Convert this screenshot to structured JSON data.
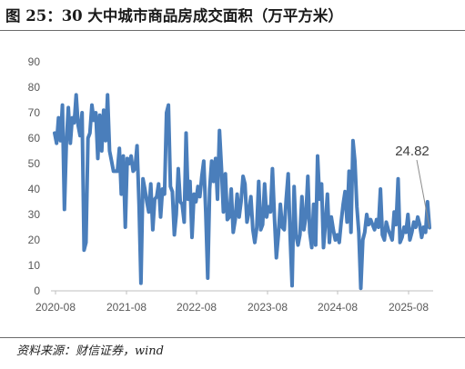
{
  "title": "图 25：30 大中城市商品房成交面积（万平方米）",
  "source": "资料来源：财信证券，wind",
  "chart_data": {
    "type": "line",
    "title": "30 大中城市商品房成交面积（万平方米）",
    "xlabel": "",
    "ylabel": "",
    "ylim": [
      0,
      90
    ],
    "yticks": [
      0,
      10,
      20,
      30,
      40,
      50,
      60,
      70,
      80,
      90
    ],
    "xtick_labels": [
      "2020-08",
      "2021-08",
      "2022-08",
      "2023-08",
      "2024-08",
      "2025-08"
    ],
    "x_start": "2020-08",
    "x_end": "2025-09",
    "grid": false,
    "legend": "none",
    "line_color": "#4a7ebb",
    "callout": {
      "text": "24.82",
      "value": 24.82
    },
    "x_note": "weekly observations, evenly spaced from 2020-08 to 2025-09",
    "series": [
      {
        "values": [
          62,
          58,
          68,
          59,
          73,
          32,
          58,
          72,
          58,
          68,
          66,
          77,
          65,
          61,
          70,
          16,
          19,
          60,
          62,
          73,
          67,
          70,
          52,
          69,
          55,
          71,
          59,
          77,
          55,
          51,
          47,
          47,
          47,
          56,
          38,
          53,
          25,
          52,
          50,
          53,
          47,
          48,
          57,
          34,
          3,
          44,
          40,
          35,
          31,
          42,
          24,
          36,
          37,
          42,
          29,
          40,
          38,
          70,
          73,
          41,
          39,
          22,
          30,
          48,
          35,
          34,
          27,
          62,
          36,
          43,
          21,
          38,
          35,
          41,
          37,
          45,
          51,
          31,
          5,
          40,
          51,
          43,
          52,
          36,
          63,
          48,
          31,
          46,
          28,
          29,
          40,
          23,
          28,
          38,
          29,
          35,
          45,
          42,
          27,
          31,
          37,
          24,
          19,
          25,
          43,
          24,
          26,
          42,
          29,
          33,
          31,
          48,
          29,
          13,
          22,
          34,
          25,
          24,
          36,
          46,
          22,
          2,
          41,
          22,
          18,
          22,
          37,
          24,
          29,
          45,
          23,
          17,
          34,
          18,
          53,
          36,
          42,
          17,
          27,
          38,
          19,
          29,
          24,
          20,
          22,
          19,
          27,
          34,
          39,
          27,
          47,
          23,
          59,
          51,
          33,
          23,
          1,
          20,
          23,
          30,
          26,
          28,
          26,
          24,
          28,
          25,
          40,
          22,
          20,
          27,
          24,
          22,
          20,
          31,
          26,
          44,
          19,
          21,
          25,
          23,
          30,
          20,
          23,
          27,
          25,
          29,
          26,
          21,
          25,
          23,
          35,
          24.82
        ]
      }
    ]
  }
}
